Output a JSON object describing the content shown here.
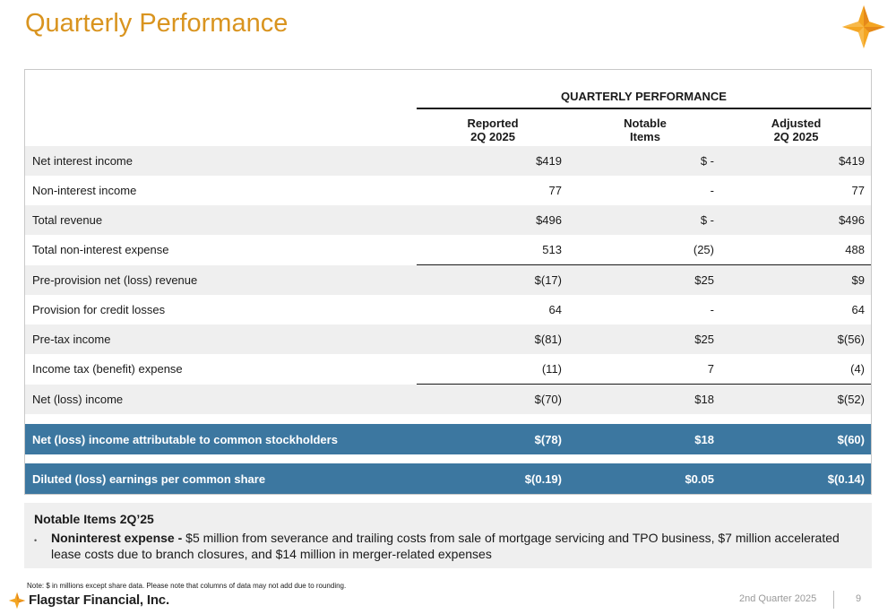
{
  "header": {
    "title": "Quarterly Performance",
    "colors": {
      "gold": "#d9941f",
      "orange": "#f4a623",
      "blue": "#3c77a0"
    }
  },
  "table": {
    "group_title": "QUARTERLY PERFORMANCE",
    "columns": [
      {
        "line1": "Reported",
        "line2": "2Q 2025"
      },
      {
        "line1": "Notable",
        "line2": "Items"
      },
      {
        "line1": "Adjusted",
        "line2": "2Q 2025"
      }
    ],
    "rows": [
      {
        "label": "Net interest income",
        "reported": "$419",
        "notable": "$ -",
        "adjusted": "$419"
      },
      {
        "label": "Non-interest income",
        "reported": "77",
        "notable": "-",
        "adjusted": "77"
      },
      {
        "label": "Total revenue",
        "reported": "$496",
        "notable": "$ -",
        "adjusted": "$496"
      },
      {
        "label": "Total non-interest expense",
        "reported": "513",
        "notable": "(25)",
        "adjusted": "488"
      },
      {
        "label": "Pre-provision net (loss) revenue",
        "reported": "$(17)",
        "notable": "$25",
        "adjusted": "$9"
      },
      {
        "label": "Provision for credit losses",
        "reported": "64",
        "notable": "-",
        "adjusted": "64"
      },
      {
        "label": "Pre-tax income",
        "reported": "$(81)",
        "notable": "$25",
        "adjusted": "$(56)"
      },
      {
        "label": "Income tax (benefit) expense",
        "reported": "(11)",
        "notable": "7",
        "adjusted": "(4)"
      },
      {
        "label": "Net (loss) income",
        "reported": "$(70)",
        "notable": "$18",
        "adjusted": "$(52)"
      }
    ],
    "highlight_rows": [
      {
        "label": "Net (loss) income attributable to common stockholders",
        "reported": "$(78)",
        "notable": "$18",
        "adjusted": "$(60)"
      },
      {
        "label": "Diluted (loss) earnings per common share",
        "reported": "$(0.19)",
        "notable": "$0.05",
        "adjusted": "$(0.14)"
      }
    ]
  },
  "notes": {
    "title": "Notable Items 2Q’25",
    "bullet": "•",
    "item_lead": "Noninterest expense - ",
    "item_text": "$5 million from severance and trailing costs from sale of mortgage servicing and TPO business, $7 million accelerated lease costs due to branch closures, and $14 million in merger-related expenses"
  },
  "footnote": "Note: $ in millions except share data. Please note that columns of data may not add due to rounding.",
  "footer": {
    "brand": "Flagstar Financial, Inc.",
    "period": "2nd Quarter 2025",
    "page_number": "9",
    "logo_icon": "flagstar-star-icon"
  }
}
